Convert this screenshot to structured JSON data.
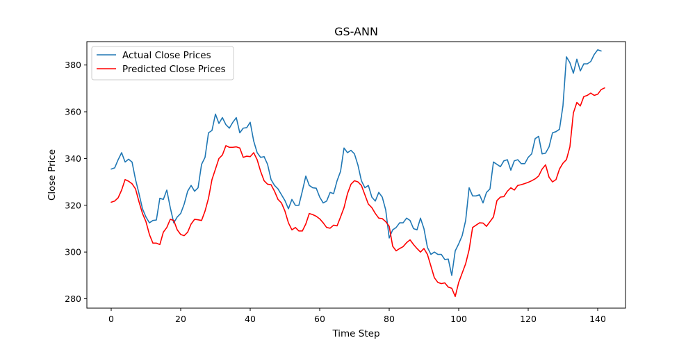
{
  "chart_data": {
    "type": "line",
    "title": "GS-ANN",
    "xlabel": "Time Step",
    "ylabel": "Close Price",
    "xlim": [
      -7,
      148
    ],
    "ylim": [
      276,
      390
    ],
    "xticks": [
      0,
      20,
      40,
      60,
      80,
      100,
      120,
      140
    ],
    "yticks": [
      280,
      300,
      320,
      340,
      360,
      380
    ],
    "grid": false,
    "legend_position": "top-left",
    "series": [
      {
        "name": "Actual Close Prices",
        "color": "#1f77b4",
        "values": [
          335.5,
          336,
          339.5,
          342.5,
          338.5,
          339.7,
          338.5,
          331,
          325,
          318.5,
          315,
          312.5,
          313.5,
          313.7,
          323,
          322.5,
          326.5,
          319,
          312.5,
          315,
          316.5,
          320.5,
          326,
          328.5,
          326,
          327.5,
          337.5,
          340.5,
          351,
          352,
          359,
          355,
          357.5,
          354.5,
          353,
          355.5,
          357.5,
          351,
          353,
          353.2,
          355.5,
          347.5,
          342.5,
          340.5,
          340.8,
          337.5,
          331,
          328.5,
          327,
          324.5,
          322,
          318.5,
          322.5,
          320,
          320,
          326,
          332.5,
          328.5,
          327.5,
          327.3,
          323.5,
          321,
          321.8,
          325.5,
          325,
          330.5,
          334.5,
          344.5,
          342.5,
          343.5,
          342,
          337.2,
          330.5,
          327.5,
          328.5,
          323.5,
          321.8,
          325.5,
          323.5,
          318,
          306,
          309.5,
          310.5,
          312.5,
          312.5,
          314.5,
          313.5,
          310,
          309.5,
          314.5,
          310,
          302,
          299,
          300,
          299,
          299,
          296.8,
          297,
          290,
          300.5,
          303.5,
          307,
          313.5,
          327.5,
          324,
          324,
          324.5,
          321,
          325.5,
          327,
          338.5,
          337.5,
          336.5,
          339,
          339.5,
          335,
          339,
          339.5,
          337.8,
          337.8,
          340.5,
          342,
          348.5,
          349.5,
          342,
          342.3,
          345,
          351,
          351.5,
          352.5,
          362.5,
          383.5,
          381,
          376.5,
          382.5,
          377.5,
          380.5,
          380.5,
          381.5,
          384.5,
          386.5,
          386
        ]
      },
      {
        "name": "Predicted Close Prices",
        "color": "#ff0000",
        "values": [
          321.3,
          321.8,
          323.2,
          326.5,
          331,
          330.3,
          329.2,
          327,
          321.5,
          316.5,
          313,
          307.5,
          303.8,
          303.8,
          303.2,
          308.5,
          310.5,
          314,
          313.5,
          309.5,
          307.5,
          307,
          308.5,
          312,
          314,
          313.8,
          313.5,
          317.5,
          323,
          331,
          335.5,
          340,
          341.5,
          345.5,
          344.8,
          344.8,
          345,
          344.5,
          340.5,
          341,
          340.8,
          342.5,
          339.5,
          334.5,
          330.5,
          329,
          328.8,
          326,
          322.5,
          321,
          317.5,
          312.5,
          309.5,
          310.5,
          309,
          309,
          312,
          316.5,
          316,
          315.3,
          314.2,
          312.5,
          310.5,
          310.2,
          311.5,
          311.2,
          315,
          319,
          325,
          329,
          330.5,
          330,
          328.5,
          324.5,
          320.5,
          319,
          316.5,
          314.5,
          314.3,
          313,
          311,
          302.5,
          300.5,
          301.5,
          302.3,
          304,
          305.2,
          303.2,
          301.5,
          300,
          301.5,
          299,
          294,
          289,
          287,
          286.5,
          286.8,
          285,
          284.5,
          281,
          287,
          291,
          295,
          301,
          310.5,
          311.5,
          312.5,
          312.4,
          311,
          313,
          315,
          322,
          323.5,
          323.7,
          326,
          327.5,
          326.5,
          328.5,
          328.8,
          329.3,
          329.8,
          330.5,
          331.3,
          332.5,
          335.5,
          337.3,
          332,
          330,
          331,
          335.5,
          338,
          339.5,
          345,
          359.5,
          364,
          362.5,
          366.5,
          367,
          368,
          367,
          367.5,
          369.5,
          370.2
        ]
      }
    ]
  }
}
